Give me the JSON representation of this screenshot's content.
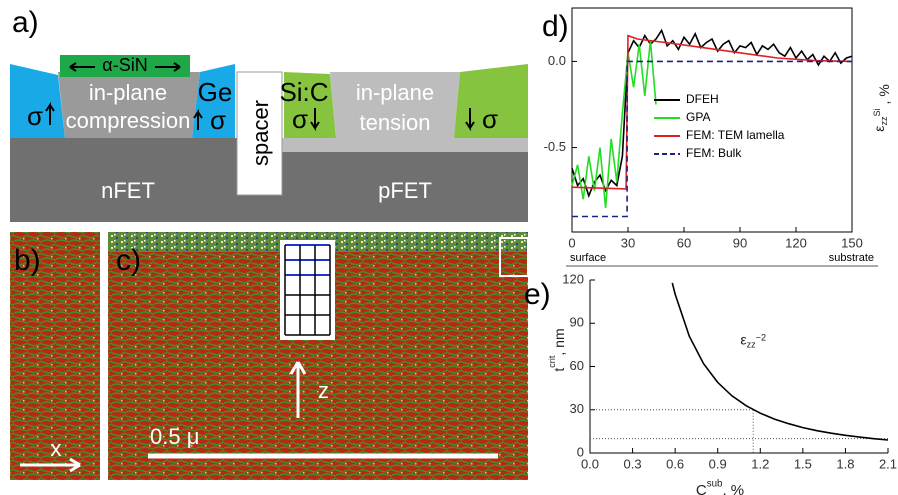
{
  "panels": {
    "a": {
      "label": "a)",
      "cap": "α-SiN",
      "n_top": "in-plane",
      "n_bottom": "compression",
      "ge": "Ge",
      "sigma_left": "σ",
      "sigma_right": "σ",
      "spacer": "spacer",
      "sic": "Si:C",
      "p_top": "in-plane",
      "p_bottom": "tension",
      "sigma_p_left": "σ",
      "sigma_p_right": "σ",
      "nfet": "nFET",
      "pfet": "pFET"
    },
    "b": {
      "label": "b)",
      "axis": "x"
    },
    "c": {
      "label": "c)",
      "axis": "z",
      "scale": "0.5 μ"
    }
  },
  "chart_data": [
    {
      "type": "line",
      "panel": "d)",
      "xlim": [
        0,
        150
      ],
      "ylim": [
        -0.99,
        0.31
      ],
      "xticks": [
        0,
        30,
        60,
        90,
        120,
        150
      ],
      "yticks": [
        {
          "value": 0,
          "label": "0.0"
        },
        -0.5
      ],
      "x_start_label": "surface",
      "x_end_label": "substrate",
      "ylabel": {
        "base": "ε",
        "sub": "zz",
        "sup": "Si",
        "tail": " , %"
      },
      "frame": "box",
      "legend": "center-right",
      "series": [
        {
          "name": "DFEH",
          "color": "#000000",
          "x": [
            0,
            3,
            6,
            9,
            12,
            15,
            18,
            21,
            24,
            27,
            30,
            33,
            36,
            39,
            42,
            45,
            48,
            51,
            54,
            57,
            60,
            63,
            66,
            69,
            72,
            75,
            78,
            81,
            84,
            87,
            90,
            93,
            96,
            99,
            102,
            105,
            108,
            111,
            114,
            117,
            120,
            123,
            126,
            129,
            132,
            135,
            138,
            141,
            144,
            147,
            150
          ],
          "values": [
            -0.62,
            -0.72,
            -0.68,
            -0.78,
            -0.7,
            -0.66,
            -0.75,
            -0.69,
            -0.72,
            -0.55,
            0.05,
            0.12,
            0.08,
            0.15,
            0.1,
            0.13,
            0.18,
            0.09,
            0.12,
            0.07,
            0.14,
            0.1,
            0.16,
            0.08,
            0.11,
            0.13,
            0.06,
            0.1,
            0.12,
            0.05,
            0.09,
            0.08,
            0.11,
            0.04,
            0.09,
            0.07,
            0.1,
            0.05,
            0.03,
            0.08,
            0.02,
            0.06,
            0.01,
            0.04,
            -0.02,
            0.03,
            0,
            0.05,
            -0.01,
            0.02,
            0.03
          ]
        },
        {
          "name": "GPA",
          "color": "#22dd22",
          "x": [
            0,
            3,
            6,
            9,
            12,
            15,
            18,
            21,
            24,
            27,
            30,
            33,
            36,
            39,
            42,
            45
          ],
          "values": [
            -0.72,
            -0.6,
            -0.8,
            -0.55,
            -0.75,
            -0.5,
            -0.85,
            -0.45,
            -0.7,
            -0.3,
            0.05,
            -0.15,
            0.1,
            -0.2,
            0.12,
            -0.25
          ]
        },
        {
          "name": "FEM: TEM lamella",
          "color": "#e02020",
          "x": [
            0,
            29,
            30,
            35,
            50,
            70,
            90,
            110,
            130,
            150
          ],
          "values": [
            -0.73,
            -0.74,
            0.15,
            0.13,
            0.11,
            0.08,
            0.05,
            0.02,
            0.005,
            0
          ]
        },
        {
          "name": "FEM: Bulk",
          "color": "#1a237e",
          "dashed": true,
          "x": [
            0,
            29.5,
            29.5,
            150
          ],
          "values": [
            -0.9,
            -0.9,
            0,
            0
          ]
        }
      ]
    },
    {
      "type": "line",
      "panel": "e)",
      "xlim": [
        0,
        2.1
      ],
      "ylim": [
        0,
        120
      ],
      "xticks": [
        {
          "value": 0,
          "label": "0.0"
        },
        0.3,
        0.6,
        0.9,
        1.2,
        1.5,
        1.8,
        2.1
      ],
      "yticks": [
        0,
        30,
        60,
        90,
        120
      ],
      "xlabel": {
        "base": "C",
        "sup": "sub",
        "tail": ", %"
      },
      "ylabel": {
        "base": "t",
        "sup": "crit",
        "tail": ", nm"
      },
      "annotation": {
        "base": "ε",
        "sub": "zz",
        "sup": "−2"
      },
      "frame": "axes",
      "reference_lines": [
        {
          "x": 1.15,
          "y": 30
        },
        {
          "y": 10
        }
      ],
      "series": [
        {
          "color": "#000000",
          "x": [
            0.58,
            0.6,
            0.7,
            0.8,
            0.9,
            1.0,
            1.1,
            1.2,
            1.3,
            1.4,
            1.5,
            1.6,
            1.7,
            1.8,
            1.9,
            2.0,
            2.1
          ],
          "values": [
            118,
            110.3,
            81,
            62,
            49,
            39.7,
            32.8,
            27.6,
            23.5,
            20.3,
            17.6,
            15.5,
            13.7,
            12.3,
            11,
            9.9,
            9
          ]
        }
      ]
    }
  ]
}
